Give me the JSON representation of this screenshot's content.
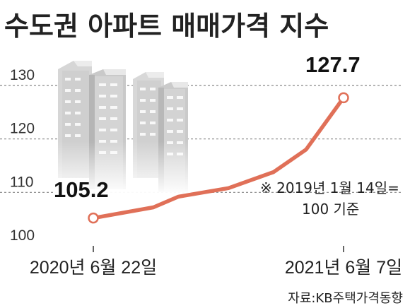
{
  "chart_data": {
    "type": "line",
    "title": "수도권 아파트 매매가격 지수",
    "x": [
      "2020년 6월 22일",
      "",
      "",
      "",
      "",
      "",
      "2021년 6월 7일"
    ],
    "series": [
      {
        "values": [
          105.2,
          107.2,
          109.2,
          110.8,
          113.8,
          118.0,
          127.7
        ]
      }
    ],
    "ylim": [
      100,
      130
    ],
    "yticks": [
      "100",
      "110",
      "120",
      "130"
    ],
    "xticks": [
      "2020년 6월 22일",
      "2021년 6월 7일"
    ],
    "labels": {
      "start": "105.2",
      "end": "127.7"
    },
    "grid": true,
    "line_color": "#e07058",
    "annotation": [
      "※ 2019년 1월 14일=",
      "100 기준"
    ],
    "source": "자료:KB주택가격동향"
  }
}
